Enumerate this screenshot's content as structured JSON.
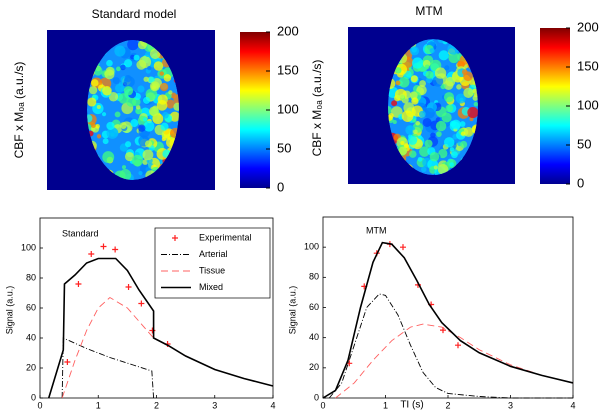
{
  "chart_data": [
    {
      "type": "image",
      "title": "Standard model",
      "ylabel": "CBF x M₀ₐ (a.u./s)",
      "clim": [
        0,
        200
      ],
      "cticks": [
        0,
        50,
        100,
        150,
        200
      ],
      "colormap": "jet"
    },
    {
      "type": "image",
      "title": "MTM",
      "ylabel": "CBF x M₀ₐ (a.u./s)",
      "clim": [
        0,
        200
      ],
      "cticks": [
        0,
        50,
        100,
        150,
        200
      ],
      "colormap": "jet"
    },
    {
      "type": "line",
      "title": "Standard",
      "ylabel": "Signal (a.u.)",
      "xlim": [
        0,
        4
      ],
      "xticks": [
        0,
        1,
        2,
        3,
        4
      ],
      "ylim": [
        0,
        120
      ],
      "yticks": [
        0,
        20,
        40,
        60,
        80,
        100
      ],
      "legend": "upper right",
      "series": [
        {
          "name": "Experimental",
          "color": "#ff2020",
          "style": "markers",
          "x": [
            0.47,
            0.66,
            0.88,
            1.09,
            1.29,
            1.52,
            1.74,
            1.93,
            2.19
          ],
          "values": [
            24,
            76,
            96,
            101,
            99,
            74,
            63,
            45,
            36
          ]
        },
        {
          "name": "Arterial",
          "color": "#000000",
          "style": "dashdot",
          "x": [
            0.38,
            0.4,
            0.8,
            1.2,
            1.6,
            1.92,
            1.95
          ],
          "values": [
            0,
            40,
            33,
            27,
            22,
            18,
            0
          ]
        },
        {
          "name": "Tissue",
          "color": "#ff6060",
          "style": "dashed",
          "x": [
            0.38,
            0.6,
            0.8,
            1.0,
            1.2,
            1.5,
            1.95,
            2.2,
            2.5,
            3,
            3.5,
            4
          ],
          "values": [
            0,
            25,
            45,
            60,
            67,
            60,
            40,
            35,
            28,
            19,
            13,
            8
          ]
        },
        {
          "name": "Mixed",
          "color": "#000000",
          "style": "solid",
          "x": [
            0.15,
            0.4,
            0.42,
            0.6,
            0.8,
            1.0,
            1.3,
            1.5,
            1.7,
            1.95,
            1.95,
            2.2,
            2.5,
            3,
            3.5,
            4
          ],
          "values": [
            0,
            32,
            76,
            82,
            90,
            93,
            93,
            85,
            72,
            58,
            40,
            35,
            28,
            19,
            13,
            8
          ]
        }
      ]
    },
    {
      "type": "line",
      "title": "MTM",
      "ylabel": "Signal (a.u.)",
      "xlabel": "TI (s)",
      "xlim": [
        0,
        4
      ],
      "xticks": [
        0,
        1,
        2,
        3,
        4
      ],
      "ylim": [
        0,
        120
      ],
      "yticks": [
        0,
        20,
        40,
        60,
        80,
        100
      ],
      "series": [
        {
          "color": "#ff2020",
          "style": "markers",
          "x": [
            0.42,
            0.66,
            0.86,
            1.07,
            1.28,
            1.52,
            1.73,
            1.92,
            2.16
          ],
          "values": [
            23,
            74,
            96,
            102,
            100,
            75,
            62,
            45,
            35
          ]
        },
        {
          "color": "#000000",
          "style": "dashdot",
          "x": [
            0.1,
            0.3,
            0.5,
            0.7,
            0.9,
            1.0,
            1.2,
            1.4,
            1.6,
            1.8,
            2,
            2.5,
            3,
            4
          ],
          "values": [
            0,
            10,
            35,
            60,
            69,
            68,
            55,
            35,
            17,
            7,
            3,
            1,
            0,
            0
          ]
        },
        {
          "color": "#ff6060",
          "style": "dashed",
          "x": [
            0.2,
            0.5,
            0.8,
            1.1,
            1.4,
            1.6,
            1.9,
            2.2,
            2.5,
            3,
            3.5,
            4
          ],
          "values": [
            0,
            10,
            25,
            38,
            47,
            49,
            47,
            40,
            32,
            22,
            15,
            10
          ]
        },
        {
          "color": "#000000",
          "style": "solid",
          "x": [
            0,
            0.2,
            0.4,
            0.6,
            0.8,
            0.95,
            1.1,
            1.3,
            1.5,
            1.7,
            1.9,
            2.2,
            2.5,
            3,
            3.5,
            4
          ],
          "values": [
            0,
            5,
            25,
            60,
            90,
            103,
            102,
            93,
            78,
            62,
            50,
            38,
            30,
            21,
            15,
            10
          ]
        }
      ]
    }
  ]
}
